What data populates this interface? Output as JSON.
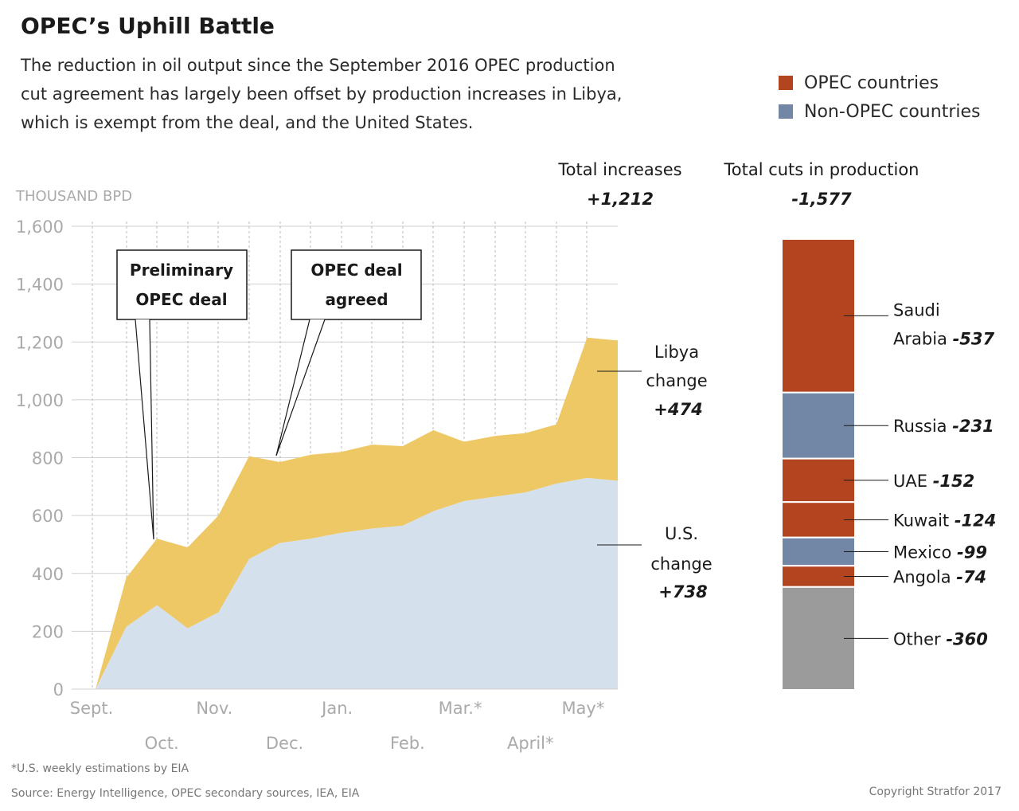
{
  "title": "OPEC’s Uphill Battle",
  "subtitle": "The reduction in oil output since the September 2016 OPEC production cut agreement has largely been offset by production increases in Libya, which is exempt from the deal, and the United States.",
  "legend": [
    {
      "label": "OPEC countries",
      "color": "#b2451f"
    },
    {
      "label": "Non-OPEC countries",
      "color": "#7286a5"
    }
  ],
  "footnote": "*U.S. weekly estimations by EIA",
  "source": "Source: Energy Intelligence, OPEC secondary sources, IEA, EIA",
  "copyright": "Copyright Stratfor 2017",
  "chart_data": [
    {
      "type": "area",
      "stacked": true,
      "ylabel": "THOUSAND BPD",
      "ylim": [
        0,
        1600
      ],
      "yticks": [
        0,
        200,
        400,
        600,
        800,
        1000,
        1200,
        1400,
        1600
      ],
      "grid": true,
      "x_labels_row1": [
        "Sept.",
        "Nov.",
        "Jan.",
        "Mar.*",
        "May*"
      ],
      "x_labels_row2": [
        "Oct.",
        "Dec.",
        "Feb.",
        "April*"
      ],
      "x_points": [
        "Sept.",
        "",
        "Oct.",
        "",
        "Nov.",
        "",
        "Dec.",
        "",
        "Jan.",
        "",
        "Feb.",
        "",
        "Mar.*",
        "",
        "April*",
        "",
        "May*",
        ""
      ],
      "series": [
        {
          "name": "U.S.",
          "color": "#d4e0ec",
          "values": [
            0,
            215,
            290,
            210,
            265,
            450,
            505,
            520,
            540,
            555,
            565,
            615,
            650,
            665,
            680,
            710,
            730,
            720
          ]
        },
        {
          "name": "Libya",
          "color": "#eec865",
          "values": [
            0,
            170,
            230,
            280,
            335,
            355,
            280,
            290,
            280,
            290,
            275,
            280,
            205,
            210,
            205,
            205,
            485,
            485
          ]
        }
      ],
      "total_libya_us": [
        0,
        385,
        520,
        490,
        600,
        805,
        785,
        810,
        820,
        845,
        840,
        895,
        855,
        875,
        885,
        915,
        1215,
        1205
      ],
      "annotations": [
        {
          "text": "Preliminary OPEC deal",
          "lines": [
            "Preliminary",
            "OPEC deal"
          ]
        },
        {
          "text": "OPEC deal agreed",
          "lines": [
            "OPEC deal",
            "agreed"
          ]
        }
      ],
      "labels": {
        "libya": {
          "lines": [
            "Libya",
            "change"
          ],
          "value": "+474"
        },
        "us": {
          "lines": [
            "U.S.",
            "change"
          ],
          "value": "+738"
        }
      },
      "total_increases": {
        "label": "Total increases",
        "value": "+1,212"
      }
    },
    {
      "type": "bar",
      "stacked": true,
      "total_cuts": {
        "label": "Total cuts in production",
        "value": "-1,577"
      },
      "segments": [
        {
          "name": "Saudi Arabia",
          "lines": [
            "Saudi",
            "Arabia"
          ],
          "value": -537,
          "value_label": "-537",
          "group": "OPEC countries",
          "color": "#b2451f"
        },
        {
          "name": "Russia",
          "lines": [
            "Russia"
          ],
          "value": -231,
          "value_label": "-231",
          "group": "Non-OPEC countries",
          "color": "#7286a5"
        },
        {
          "name": "UAE",
          "lines": [
            "UAE"
          ],
          "value": -152,
          "value_label": "-152",
          "group": "OPEC countries",
          "color": "#b2451f"
        },
        {
          "name": "Kuwait",
          "lines": [
            "Kuwait"
          ],
          "value": -124,
          "value_label": "-124",
          "group": "OPEC countries",
          "color": "#b2451f"
        },
        {
          "name": "Mexico",
          "lines": [
            "Mexico"
          ],
          "value": -99,
          "value_label": "-99",
          "group": "Non-OPEC countries",
          "color": "#7286a5"
        },
        {
          "name": "Angola",
          "lines": [
            "Angola"
          ],
          "value": -74,
          "value_label": "-74",
          "group": "OPEC countries",
          "color": "#b2451f"
        },
        {
          "name": "Other",
          "lines": [
            "Other"
          ],
          "value": -360,
          "value_label": "-360",
          "color": "#9b9b9b"
        }
      ]
    }
  ]
}
